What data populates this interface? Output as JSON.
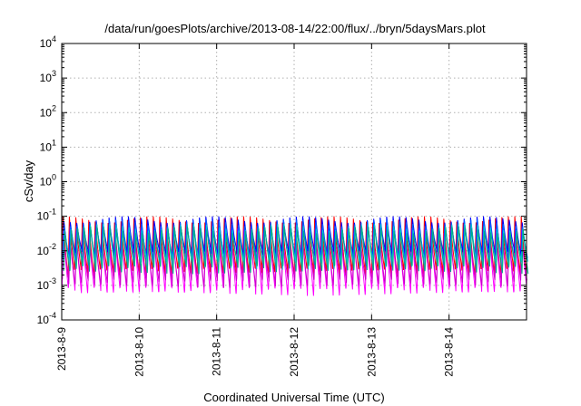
{
  "chart_data": {
    "type": "line",
    "title": "/data/run/goesPlots/archive/2013-08-14/22:00/flux/../bryn/5daysMars.plot",
    "xlabel": "Coordinated Universal Time (UTC)",
    "ylabel": "cSv/day",
    "y_scale": "log",
    "ylim": [
      0.0001,
      10000
    ],
    "y_ticks": [
      {
        "value": 0.0001,
        "base": "10",
        "exp": "-4"
      },
      {
        "value": 0.001,
        "base": "10",
        "exp": "-3"
      },
      {
        "value": 0.01,
        "base": "10",
        "exp": "-2"
      },
      {
        "value": 0.1,
        "base": "10",
        "exp": "-1"
      },
      {
        "value": 1,
        "base": "10",
        "exp": "0"
      },
      {
        "value": 10,
        "base": "10",
        "exp": "1"
      },
      {
        "value": 100,
        "base": "10",
        "exp": "2"
      },
      {
        "value": 1000,
        "base": "10",
        "exp": "3"
      },
      {
        "value": 10000,
        "base": "10",
        "exp": "4"
      }
    ],
    "x_ticks": [
      "2013-8-9",
      "2013-8-10",
      "2013-8-11",
      "2013-8-12",
      "2013-8-13",
      "2013-8-14"
    ],
    "xlim": [
      "2013-8-9",
      "2013-8-15"
    ],
    "grid": true,
    "cycle_hours": 2,
    "series": [
      {
        "color": "#ff0000",
        "peak": 0.1,
        "trough": 0.0025
      },
      {
        "color": "#ff00ff",
        "peak": 0.045,
        "trough": 0.0007
      },
      {
        "color": "#cc00cc",
        "peak": 0.03,
        "trough": 0.0012
      },
      {
        "color": "#0000ff",
        "peak": 0.1,
        "trough": 0.008
      },
      {
        "color": "#0066ff",
        "peak": 0.08,
        "trough": 0.005
      },
      {
        "color": "#00cccc",
        "peak": 0.06,
        "trough": 0.004
      },
      {
        "color": "#00aa88",
        "peak": 0.05,
        "trough": 0.003
      }
    ]
  }
}
